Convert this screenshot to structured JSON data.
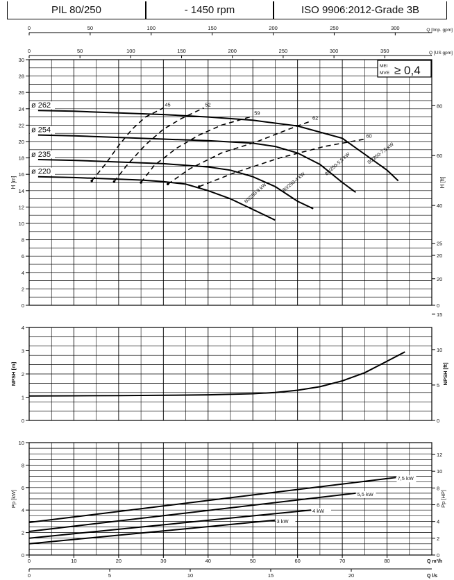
{
  "header": {
    "cells": [
      "PIL 80/250",
      "- 1450 rpm",
      "ISO 9906:2012-Grade 3B"
    ]
  },
  "chart_data": [
    {
      "type": "line",
      "name_tag": "head",
      "axes_top": [
        {
          "label": "Q [Imp. gpm]",
          "ticks": [
            0,
            50,
            100,
            150,
            200,
            250,
            300
          ]
        },
        {
          "label": "Q [US gpm]",
          "ticks": [
            0,
            50,
            100,
            150,
            200,
            250,
            300,
            350
          ]
        }
      ],
      "ylabel": "H [m]",
      "ylim": [
        0,
        30
      ],
      "yticks": [
        0,
        2,
        4,
        6,
        8,
        10,
        12,
        14,
        16,
        18,
        20,
        22,
        24,
        26,
        28,
        30
      ],
      "ylabel_right": "H [ft]",
      "yticks_right": [
        0,
        20,
        40,
        60,
        80
      ],
      "mei_box": {
        "line1": "MEI",
        "line2": "MVE",
        "value": "≥ 0,4"
      },
      "series": [
        {
          "name": "ø 262",
          "curve_label": "80/250-7,5 kW",
          "x": [
            2,
            10,
            20,
            30,
            40,
            50,
            60,
            70,
            80,
            82.5
          ],
          "y": [
            23.8,
            23.7,
            23.5,
            23.3,
            23.0,
            22.6,
            21.9,
            20.4,
            16.5,
            15.2
          ]
        },
        {
          "name": "ø 254",
          "curve_label": "80/250-5,5 kW",
          "x": [
            2,
            10,
            20,
            30,
            40,
            50,
            55,
            60,
            65,
            70,
            73
          ],
          "y": [
            20.8,
            20.7,
            20.5,
            20.3,
            20.1,
            19.8,
            19.4,
            18.6,
            17.2,
            15.0,
            13.8
          ]
        },
        {
          "name": "ø 235",
          "curve_label": "80/250-4 kW",
          "x": [
            2,
            10,
            20,
            30,
            40,
            45,
            50,
            55,
            60,
            63.5
          ],
          "y": [
            17.8,
            17.7,
            17.5,
            17.3,
            16.9,
            16.5,
            15.7,
            14.5,
            12.7,
            11.8
          ]
        },
        {
          "name": "ø 220",
          "curve_label": "80/250-3 kW",
          "x": [
            2,
            10,
            20,
            25,
            30,
            35,
            40,
            45,
            50,
            55
          ],
          "y": [
            15.7,
            15.6,
            15.4,
            15.3,
            15.1,
            14.8,
            14.0,
            13.0,
            11.7,
            10.4
          ]
        }
      ],
      "efficiency_labels": [
        "45",
        "52",
        "59",
        "62",
        "60"
      ],
      "efficiency_curves": [
        {
          "x": [
            14,
            17,
            20,
            23,
            26,
            30
          ],
          "y": [
            15.2,
            17.2,
            19.5,
            21.5,
            23.0,
            24.1
          ]
        },
        {
          "x": [
            19,
            22,
            26,
            30,
            34,
            39
          ],
          "y": [
            15.1,
            17.2,
            19.6,
            21.5,
            22.8,
            24.1
          ]
        },
        {
          "x": [
            25,
            28,
            33,
            38,
            43,
            50
          ],
          "y": [
            15.0,
            17.1,
            19.2,
            20.8,
            22.0,
            23.1
          ]
        },
        {
          "x": [
            31,
            36,
            43,
            51,
            58,
            63
          ],
          "y": [
            14.8,
            16.7,
            18.6,
            20.0,
            21.5,
            22.5
          ]
        },
        {
          "x": [
            38,
            46,
            56,
            66,
            75
          ],
          "y": [
            14.5,
            16.2,
            18.0,
            19.4,
            20.3
          ]
        }
      ]
    },
    {
      "type": "line",
      "name_tag": "npsh",
      "ylabel": "NPSH [m]",
      "ylim": [
        0,
        4
      ],
      "yticks": [
        0,
        1,
        2,
        3,
        4
      ],
      "ylabel_right": "NPSH [ft]",
      "yticks_right": [
        0,
        5,
        10,
        15,
        20,
        25
      ],
      "series": [
        {
          "x": [
            0,
            10,
            20,
            30,
            40,
            50,
            55,
            60,
            65,
            70,
            75,
            80,
            84
          ],
          "y": [
            1.05,
            1.06,
            1.07,
            1.08,
            1.1,
            1.15,
            1.2,
            1.3,
            1.45,
            1.7,
            2.05,
            2.55,
            2.95
          ]
        }
      ]
    },
    {
      "type": "line",
      "name_tag": "power",
      "ylabel": "Pp [kW]",
      "ylim": [
        0,
        10
      ],
      "yticks": [
        0,
        2,
        4,
        6,
        8,
        10
      ],
      "ylabel_right": "Pp [HP]",
      "yticks_right": [
        0,
        2,
        4,
        6,
        8,
        10,
        12
      ],
      "xlabel": "Q m³/h",
      "xticks": [
        0,
        10,
        20,
        30,
        40,
        50,
        60,
        70,
        80
      ],
      "xlabel2": "Q l/s",
      "xticks2": [
        0,
        5,
        10,
        15,
        20
      ],
      "series": [
        {
          "name": "7,5 kW",
          "x": [
            0,
            82
          ],
          "y": [
            2.9,
            6.9
          ]
        },
        {
          "name": "5,5 kW",
          "x": [
            0,
            73
          ],
          "y": [
            2.1,
            5.5
          ]
        },
        {
          "name": "4 kW",
          "x": [
            0,
            63
          ],
          "y": [
            1.5,
            4.0
          ]
        },
        {
          "name": "3 kW",
          "x": [
            0,
            55
          ],
          "y": [
            1.0,
            3.1
          ]
        }
      ]
    }
  ]
}
